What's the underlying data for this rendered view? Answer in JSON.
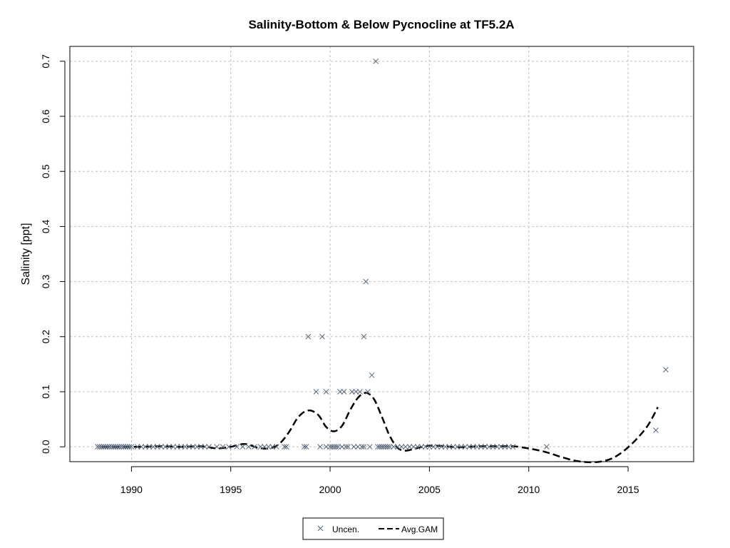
{
  "chart_data": {
    "type": "scatter",
    "title": "Salinity-Bottom & Below Pycnocline at TF5.2A",
    "xlabel": "",
    "ylabel": "Salinity [ppt]",
    "xlim": [
      1986.9,
      2018.3
    ],
    "ylim": [
      -0.027,
      0.727
    ],
    "x_ticks": [
      1990,
      1995,
      2000,
      2005,
      2010,
      2015
    ],
    "y_ticks": [
      0.0,
      0.1,
      0.2,
      0.3,
      0.4,
      0.5,
      0.6,
      0.7
    ],
    "grid": true,
    "legend_position": "bottom-center",
    "series": [
      {
        "name": "Uncen.",
        "marker": "x",
        "color": "#5a6a7e",
        "points": [
          [
            1988.3,
            0
          ],
          [
            1988.4,
            0
          ],
          [
            1988.5,
            0
          ],
          [
            1988.6,
            0
          ],
          [
            1988.7,
            0
          ],
          [
            1988.8,
            0
          ],
          [
            1988.9,
            0
          ],
          [
            1989.0,
            0
          ],
          [
            1989.1,
            0
          ],
          [
            1989.2,
            0
          ],
          [
            1989.3,
            0
          ],
          [
            1989.4,
            0
          ],
          [
            1989.5,
            0
          ],
          [
            1989.6,
            0
          ],
          [
            1989.7,
            0
          ],
          [
            1989.8,
            0
          ],
          [
            1989.9,
            0
          ],
          [
            1990.0,
            0
          ],
          [
            1990.3,
            0
          ],
          [
            1990.5,
            0
          ],
          [
            1990.7,
            0
          ],
          [
            1990.9,
            0
          ],
          [
            1991.1,
            0
          ],
          [
            1991.3,
            0
          ],
          [
            1991.5,
            0
          ],
          [
            1991.7,
            0
          ],
          [
            1991.9,
            0
          ],
          [
            1992.1,
            0
          ],
          [
            1992.3,
            0
          ],
          [
            1992.5,
            0
          ],
          [
            1992.7,
            0
          ],
          [
            1992.9,
            0
          ],
          [
            1993.1,
            0
          ],
          [
            1993.3,
            0
          ],
          [
            1993.5,
            0
          ],
          [
            1993.7,
            0
          ],
          [
            1993.9,
            0
          ],
          [
            1994.3,
            0
          ],
          [
            1994.6,
            0
          ],
          [
            1994.9,
            0
          ],
          [
            1995.3,
            0
          ],
          [
            1995.6,
            0
          ],
          [
            1995.9,
            0
          ],
          [
            1996.2,
            0
          ],
          [
            1996.5,
            0
          ],
          [
            1996.7,
            0
          ],
          [
            1996.9,
            0
          ],
          [
            1997.1,
            0
          ],
          [
            1997.3,
            0
          ],
          [
            1997.7,
            0
          ],
          [
            1997.8,
            0
          ],
          [
            1998.7,
            0
          ],
          [
            1998.8,
            0
          ],
          [
            1998.9,
            0.2
          ],
          [
            1999.3,
            0.1
          ],
          [
            1999.5,
            0
          ],
          [
            1999.6,
            0.2
          ],
          [
            1999.8,
            0.1
          ],
          [
            1999.8,
            0
          ],
          [
            2000.0,
            0
          ],
          [
            2000.1,
            0
          ],
          [
            2000.2,
            0
          ],
          [
            2000.3,
            0
          ],
          [
            2000.4,
            0
          ],
          [
            2000.5,
            0.1
          ],
          [
            2000.6,
            0
          ],
          [
            2000.7,
            0.1
          ],
          [
            2000.8,
            0
          ],
          [
            2000.9,
            0
          ],
          [
            2001.1,
            0.1
          ],
          [
            2001.2,
            0
          ],
          [
            2001.3,
            0.1
          ],
          [
            2001.4,
            0
          ],
          [
            2001.5,
            0.1
          ],
          [
            2001.6,
            0
          ],
          [
            2001.7,
            0
          ],
          [
            2001.7,
            0.2
          ],
          [
            2001.8,
            0.3
          ],
          [
            2001.9,
            0.1
          ],
          [
            2002.0,
            0
          ],
          [
            2002.1,
            0.13
          ],
          [
            2002.3,
            0.7
          ],
          [
            2002.4,
            0
          ],
          [
            2002.5,
            0
          ],
          [
            2002.6,
            0
          ],
          [
            2002.7,
            0
          ],
          [
            2002.8,
            0
          ],
          [
            2002.9,
            0
          ],
          [
            2003.0,
            0
          ],
          [
            2003.2,
            0
          ],
          [
            2003.4,
            0
          ],
          [
            2003.6,
            0
          ],
          [
            2003.8,
            0
          ],
          [
            2004.0,
            0
          ],
          [
            2004.2,
            0
          ],
          [
            2004.4,
            0
          ],
          [
            2004.6,
            0
          ],
          [
            2004.8,
            0
          ],
          [
            2005.0,
            0
          ],
          [
            2005.2,
            0
          ],
          [
            2005.4,
            0
          ],
          [
            2005.6,
            0
          ],
          [
            2005.8,
            0
          ],
          [
            2006.0,
            0
          ],
          [
            2006.2,
            0
          ],
          [
            2006.4,
            0
          ],
          [
            2006.6,
            0
          ],
          [
            2006.8,
            0
          ],
          [
            2007.0,
            0
          ],
          [
            2007.2,
            0
          ],
          [
            2007.4,
            0
          ],
          [
            2007.6,
            0
          ],
          [
            2007.8,
            0
          ],
          [
            2008.0,
            0
          ],
          [
            2008.2,
            0
          ],
          [
            2008.4,
            0
          ],
          [
            2008.6,
            0
          ],
          [
            2008.8,
            0
          ],
          [
            2009.0,
            0
          ],
          [
            2009.2,
            0
          ],
          [
            2010.9,
            0
          ],
          [
            2016.4,
            0.03
          ],
          [
            2016.9,
            0.14
          ]
        ]
      },
      {
        "name": "Avg.GAM",
        "style": "dashed",
        "color": "#000000",
        "points": [
          [
            1988.5,
            0
          ],
          [
            1989.5,
            0
          ],
          [
            1990.5,
            0
          ],
          [
            1991.5,
            0.001
          ],
          [
            1992.5,
            0
          ],
          [
            1993.5,
            0.001
          ],
          [
            1994.3,
            -0.003
          ],
          [
            1995.0,
            0
          ],
          [
            1995.7,
            0.005
          ],
          [
            1996.4,
            -0.002
          ],
          [
            1996.9,
            -0.003
          ],
          [
            1997.4,
            0.004
          ],
          [
            1997.9,
            0.025
          ],
          [
            1998.4,
            0.054
          ],
          [
            1998.9,
            0.066
          ],
          [
            1999.4,
            0.058
          ],
          [
            1999.8,
            0.036
          ],
          [
            2000.2,
            0.028
          ],
          [
            2000.6,
            0.038
          ],
          [
            2001.0,
            0.066
          ],
          [
            2001.4,
            0.089
          ],
          [
            2001.8,
            0.098
          ],
          [
            2002.2,
            0.087
          ],
          [
            2002.6,
            0.055
          ],
          [
            2003.0,
            0.02
          ],
          [
            2003.4,
            -0.002
          ],
          [
            2003.8,
            -0.007
          ],
          [
            2004.3,
            -0.003
          ],
          [
            2005.0,
            0.002
          ],
          [
            2005.8,
            0.001
          ],
          [
            2006.5,
            -0.001
          ],
          [
            2007.5,
            0.001
          ],
          [
            2008.5,
            0.001
          ],
          [
            2009.2,
            0.001
          ],
          [
            2010.0,
            -0.003
          ],
          [
            2010.8,
            -0.009
          ],
          [
            2011.5,
            -0.017
          ],
          [
            2012.3,
            -0.025
          ],
          [
            2013.0,
            -0.028
          ],
          [
            2013.6,
            -0.027
          ],
          [
            2014.2,
            -0.021
          ],
          [
            2014.8,
            -0.007
          ],
          [
            2015.4,
            0.013
          ],
          [
            2016.0,
            0.039
          ],
          [
            2016.5,
            0.072
          ]
        ]
      }
    ]
  }
}
